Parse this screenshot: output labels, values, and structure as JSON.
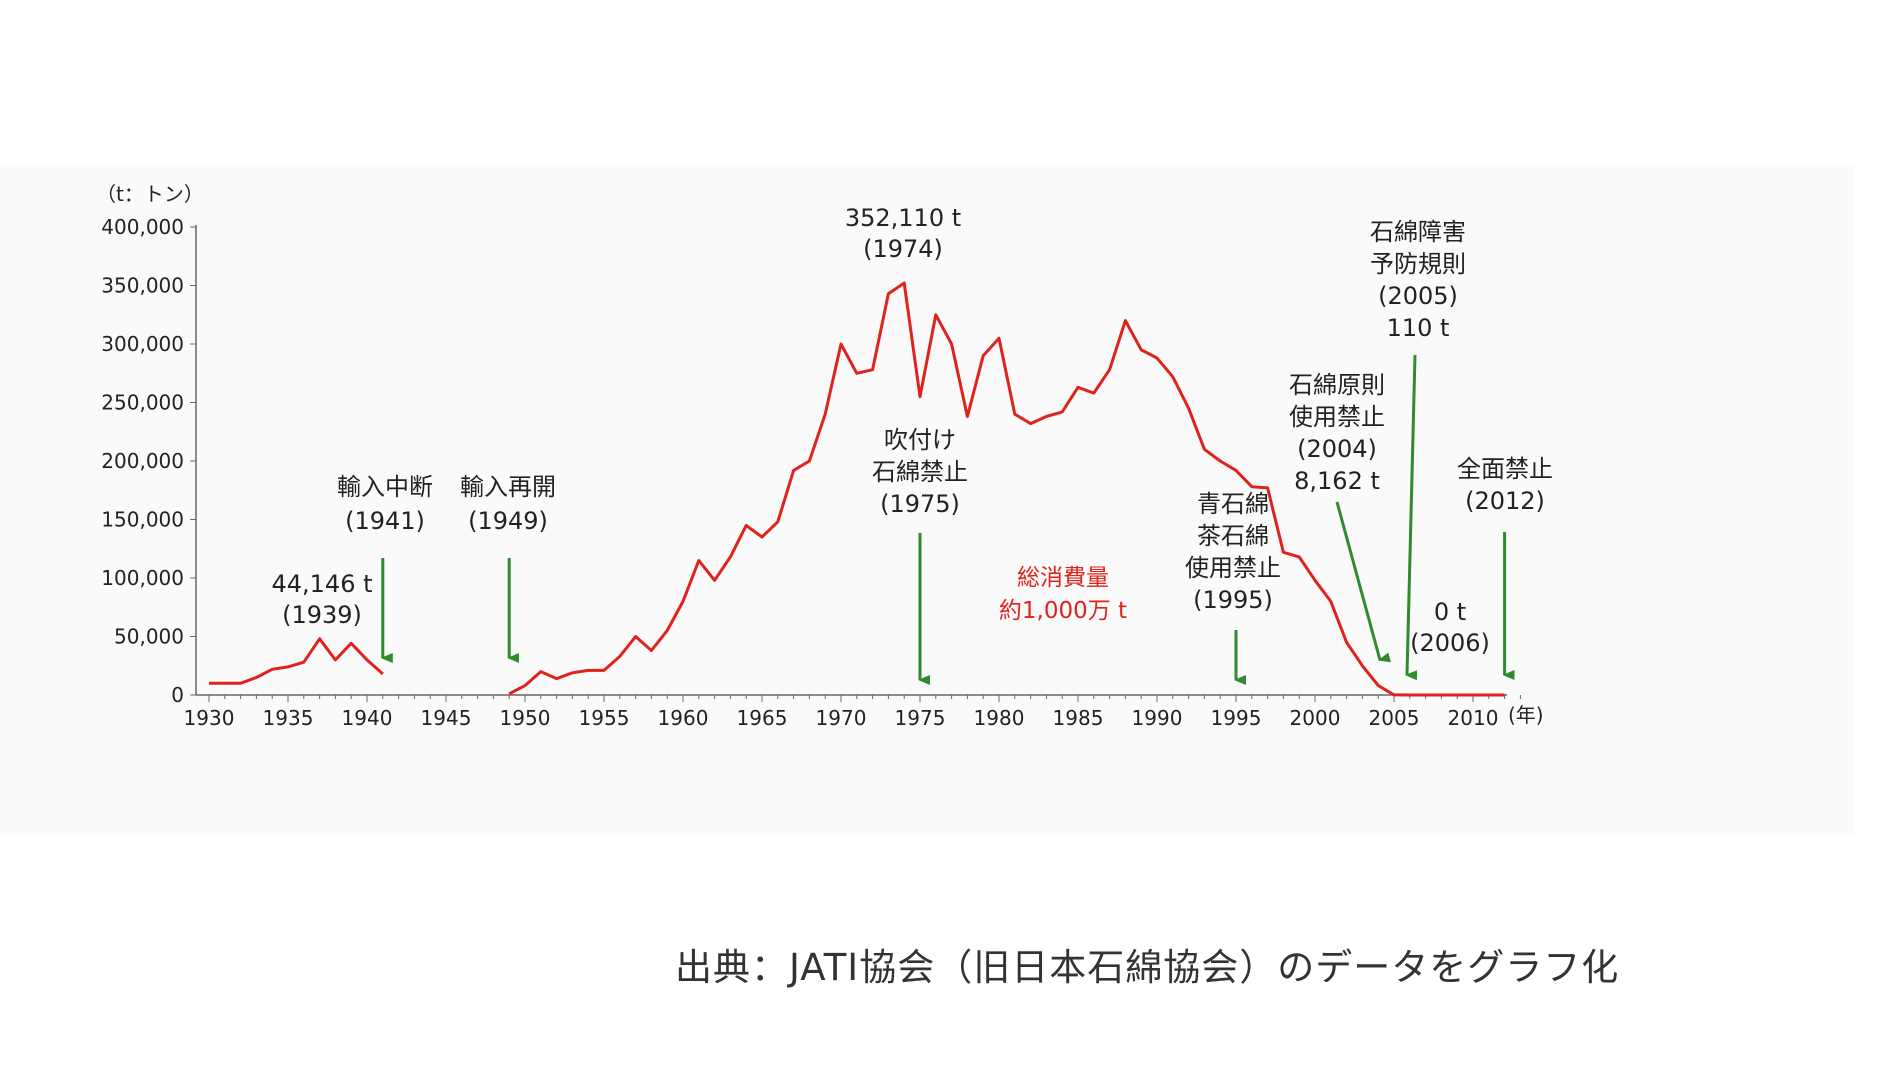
{
  "chart_data": {
    "type": "line",
    "ylabel": "（t：トン）",
    "x_unit": "(年)",
    "ylim": [
      0,
      400000
    ],
    "xlim": [
      1930,
      2013
    ],
    "y_ticks": [
      {
        "value": 0,
        "label": "0"
      },
      {
        "value": 50000,
        "label": "50,000"
      },
      {
        "value": 100000,
        "label": "100,000"
      },
      {
        "value": 150000,
        "label": "150,000"
      },
      {
        "value": 200000,
        "label": "200,000"
      },
      {
        "value": 250000,
        "label": "250,000"
      },
      {
        "value": 300000,
        "label": "300,000"
      },
      {
        "value": 350000,
        "label": "350,000"
      },
      {
        "value": 400000,
        "label": "400,000"
      }
    ],
    "x_ticks": [
      {
        "value": 1930,
        "label": "1930"
      },
      {
        "value": 1935,
        "label": "1935"
      },
      {
        "value": 1940,
        "label": "1940"
      },
      {
        "value": 1945,
        "label": "1945"
      },
      {
        "value": 1950,
        "label": "1950"
      },
      {
        "value": 1955,
        "label": "1955"
      },
      {
        "value": 1960,
        "label": "1960"
      },
      {
        "value": 1965,
        "label": "1965"
      },
      {
        "value": 1970,
        "label": "1970"
      },
      {
        "value": 1975,
        "label": "1975"
      },
      {
        "value": 1980,
        "label": "1980"
      },
      {
        "value": 1985,
        "label": "1985"
      },
      {
        "value": 1990,
        "label": "1990"
      },
      {
        "value": 1995,
        "label": "1995"
      },
      {
        "value": 2000,
        "label": "2000"
      },
      {
        "value": 2005,
        "label": "2005"
      },
      {
        "value": 2010,
        "label": "2010"
      }
    ],
    "grid": false,
    "line_color": "#e0221c",
    "arrow_color": "#2e8b2e",
    "series": [
      {
        "segments": [
          [
            [
              1930,
              10000
            ],
            [
              1931,
              10000
            ],
            [
              1932,
              10000
            ],
            [
              1933,
              15000
            ],
            [
              1934,
              22000
            ],
            [
              1935,
              24000
            ],
            [
              1936,
              28000
            ],
            [
              1937,
              48000
            ],
            [
              1938,
              30000
            ],
            [
              1939,
              44146
            ],
            [
              1940,
              30000
            ],
            [
              1941,
              18000
            ]
          ],
          [
            [
              1949,
              1000
            ],
            [
              1950,
              8000
            ],
            [
              1951,
              20000
            ],
            [
              1952,
              14000
            ],
            [
              1953,
              19000
            ],
            [
              1954,
              21000
            ],
            [
              1955,
              21000
            ],
            [
              1956,
              33000
            ],
            [
              1957,
              50000
            ],
            [
              1958,
              38000
            ],
            [
              1959,
              55000
            ],
            [
              1960,
              80000
            ],
            [
              1961,
              115000
            ],
            [
              1962,
              98000
            ],
            [
              1963,
              118000
            ],
            [
              1964,
              145000
            ],
            [
              1965,
              135000
            ],
            [
              1966,
              148000
            ],
            [
              1967,
              192000
            ],
            [
              1968,
              200000
            ],
            [
              1969,
              240000
            ],
            [
              1970,
              300000
            ],
            [
              1971,
              275000
            ],
            [
              1972,
              278000
            ],
            [
              1973,
              343000
            ],
            [
              1974,
              352110
            ],
            [
              1975,
              255000
            ],
            [
              1976,
              325000
            ],
            [
              1977,
              300000
            ],
            [
              1978,
              238000
            ],
            [
              1979,
              290000
            ],
            [
              1980,
              305000
            ],
            [
              1981,
              240000
            ],
            [
              1982,
              232000
            ],
            [
              1983,
              238000
            ],
            [
              1984,
              242000
            ],
            [
              1985,
              263000
            ],
            [
              1986,
              258000
            ],
            [
              1987,
              278000
            ],
            [
              1988,
              320000
            ],
            [
              1989,
              295000
            ],
            [
              1990,
              288000
            ],
            [
              1991,
              272000
            ],
            [
              1992,
              245000
            ],
            [
              1993,
              210000
            ],
            [
              1994,
              200000
            ],
            [
              1995,
              192000
            ],
            [
              1996,
              178000
            ],
            [
              1997,
              177000
            ],
            [
              1998,
              122000
            ],
            [
              1999,
              118000
            ],
            [
              2000,
              98000
            ],
            [
              2001,
              80000
            ],
            [
              2002,
              45000
            ],
            [
              2003,
              25000
            ],
            [
              2004,
              8162
            ],
            [
              2005,
              110
            ],
            [
              2006,
              0
            ],
            [
              2007,
              0
            ],
            [
              2008,
              0
            ],
            [
              2009,
              0
            ],
            [
              2010,
              0
            ],
            [
              2011,
              0
            ],
            [
              2012,
              0
            ]
          ]
        ]
      }
    ],
    "annotations": [
      {
        "lines": [
          "44,146 t",
          "(1939)"
        ],
        "year": 1939,
        "arrow": false
      },
      {
        "lines": [
          "輸入中断",
          "(1941)"
        ],
        "year": 1941,
        "arrow": true
      },
      {
        "lines": [
          "輸入再開",
          "(1949)"
        ],
        "year": 1949,
        "arrow": true
      },
      {
        "lines": [
          "352,110 t",
          "(1974)"
        ],
        "year": 1974,
        "arrow": false
      },
      {
        "lines": [
          "吹付け",
          "石綿禁止",
          "(1975)"
        ],
        "year": 1975,
        "arrow": true
      },
      {
        "lines": [
          "総消費量",
          "約1,000万 t"
        ],
        "year": 1985,
        "arrow": false,
        "red": true
      },
      {
        "lines": [
          "青石綿",
          "茶石綿",
          "使用禁止",
          "(1995)"
        ],
        "year": 1995,
        "arrow": true
      },
      {
        "lines": [
          "石綿原則",
          "使用禁止",
          "(2004)",
          "8,162 t"
        ],
        "year": 2004,
        "arrow": true
      },
      {
        "lines": [
          "石綿障害",
          "予防規則",
          "(2005)",
          "110 t"
        ],
        "year": 2005,
        "arrow": true
      },
      {
        "lines": [
          "0 t",
          "(2006)"
        ],
        "year": 2006,
        "arrow": false
      },
      {
        "lines": [
          "全面禁止",
          "(2012)"
        ],
        "year": 2012,
        "arrow": true
      }
    ]
  },
  "source_note": "出典：JATI協会（旧日本石綿協会）のデータをグラフ化"
}
